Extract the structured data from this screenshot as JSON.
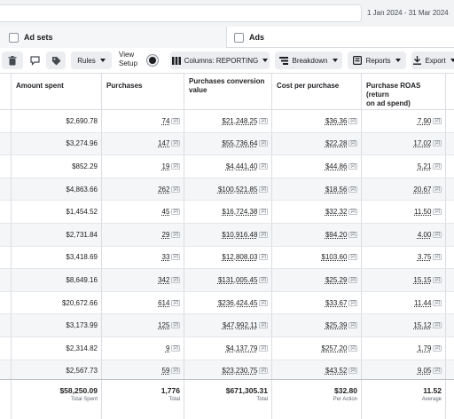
{
  "date_range": "1 Jan 2024 - 31 Mar 2024",
  "tabs": {
    "adsets": "Ad sets",
    "ads": "Ads"
  },
  "toolbar": {
    "rules": "Rules",
    "view_setup_line1": "View",
    "view_setup_line2": "Setup",
    "columns": "Columns: REPORTING",
    "breakdown": "Breakdown",
    "reports": "Reports",
    "export": "Export"
  },
  "headers": {
    "amount": "Amount spent",
    "purchases": "Purchases",
    "conversion_line1": "Purchases conversion",
    "conversion_line2": "value",
    "cpp": "Cost per purchase",
    "roas_line1": "Purchase ROAS (return",
    "roas_line2": "on ad spend)"
  },
  "note_marker": "[2]",
  "rows": [
    {
      "amount": "$2,690.78",
      "purchases": "74",
      "conversion": "$21,248.25",
      "cpp": "$36.36",
      "roas": "7.90"
    },
    {
      "amount": "$3,274.96",
      "purchases": "147",
      "conversion": "$55,736.64",
      "cpp": "$22.28",
      "roas": "17.02"
    },
    {
      "amount": "$852.29",
      "purchases": "19",
      "conversion": "$4,441.40",
      "cpp": "$44.86",
      "roas": "5.21"
    },
    {
      "amount": "$4,863.66",
      "purchases": "262",
      "conversion": "$100,521.85",
      "cpp": "$18.56",
      "roas": "20.67"
    },
    {
      "amount": "$1,454.52",
      "purchases": "45",
      "conversion": "$16,724.38",
      "cpp": "$32.32",
      "roas": "11.50"
    },
    {
      "amount": "$2,731.84",
      "purchases": "29",
      "conversion": "$10,916.48",
      "cpp": "$94.20",
      "roas": "4.00"
    },
    {
      "amount": "$3,418.69",
      "purchases": "33",
      "conversion": "$12,808.03",
      "cpp": "$103.60",
      "roas": "3.75"
    },
    {
      "amount": "$8,649.16",
      "purchases": "342",
      "conversion": "$131,005.45",
      "cpp": "$25.29",
      "roas": "15.15"
    },
    {
      "amount": "$20,672.66",
      "purchases": "614",
      "conversion": "$236,424.45",
      "cpp": "$33.67",
      "roas": "11.44"
    },
    {
      "amount": "$3,173.99",
      "purchases": "125",
      "conversion": "$47,992.11",
      "cpp": "$25.39",
      "roas": "15.12"
    },
    {
      "amount": "$2,314.82",
      "purchases": "9",
      "conversion": "$4,137.79",
      "cpp": "$257.20",
      "roas": "1.79"
    },
    {
      "amount": "$2,567.73",
      "purchases": "59",
      "conversion": "$23,230.75",
      "cpp": "$43.52",
      "roas": "9.05"
    },
    {
      "amount": "$0.00",
      "purchases": "—",
      "conversion": "$0.00",
      "cpp": "—",
      "roas": "—"
    }
  ],
  "totals": {
    "amount": "$58,250.09",
    "amount_sub": "Total Spent",
    "purchases": "1,776",
    "purchases_sub": "Total",
    "conversion": "$671,305.31",
    "conversion_sub": "Total",
    "cpp": "$32.80",
    "cpp_sub": "Per Action",
    "roas": "11.52",
    "roas_sub": "Average"
  }
}
